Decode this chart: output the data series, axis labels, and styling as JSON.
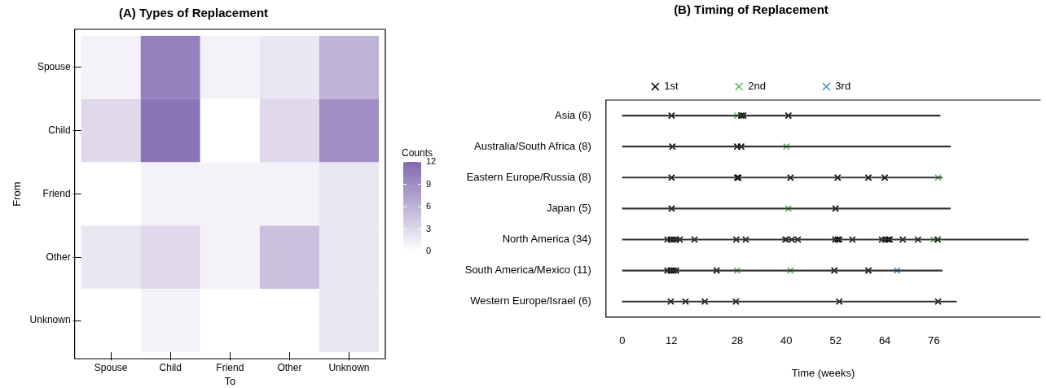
{
  "chart_data": [
    {
      "type": "heatmap",
      "title": "(A) Types of Replacement",
      "xlabel": "To",
      "ylabel": "From",
      "clabel": "Counts",
      "categories": [
        "Spouse",
        "Child",
        "Friend",
        "Other",
        "Unknown"
      ],
      "y_categories": [
        "Spouse",
        "Child",
        "Friend",
        "Other",
        "Unknown"
      ],
      "cells": [
        [
          1,
          10,
          1,
          2,
          6
        ],
        [
          3,
          11,
          0,
          3,
          9
        ],
        [
          0,
          1,
          1,
          1,
          2
        ],
        [
          2,
          3,
          1,
          5,
          2
        ],
        [
          0,
          1,
          0,
          0,
          2
        ]
      ],
      "clim": [
        0,
        12
      ],
      "cticks": [
        0,
        3,
        6,
        9,
        12
      ]
    },
    {
      "type": "bar",
      "orientation": "horizontal",
      "title": "(B) Timing of Replacement",
      "xlabel": "Time (weeks)",
      "categories": [
        "Asia (6)",
        "Australia/South Africa (8)",
        "Eastern Europe/Russia (8)",
        "Japan (5)",
        "North America (34)",
        "South America/Mexico (11)",
        "Western Europe/Israel (6)"
      ],
      "xlim": [
        -4,
        102
      ],
      "xticks": [
        0,
        12,
        28,
        40,
        52,
        64,
        76
      ],
      "legend": "top",
      "marker": "cross",
      "grid": false,
      "series": [
        {
          "color": "#333333",
          "values": [
            77.5,
            80,
            78,
            80,
            99,
            78,
            81.5
          ]
        },
        {
          "name": "1st",
          "type": "scatter",
          "color": "#000000",
          "x": [
            "Asia (6)",
            "Asia (6)",
            "Asia (6)",
            "Asia (6)",
            "Australia/South Africa (8)",
            "Australia/South Africa (8)",
            "Australia/South Africa (8)",
            "Australia/South Africa (8)",
            "Australia/South Africa (8)",
            "Eastern Europe/Russia (8)",
            "Eastern Europe/Russia (8)",
            "Eastern Europe/Russia (8)",
            "Eastern Europe/Russia (8)",
            "Eastern Europe/Russia (8)",
            "Eastern Europe/Russia (8)",
            "Eastern Europe/Russia (8)",
            "Japan (5)",
            "Japan (5)",
            "North America (34)",
            "North America (34)",
            "North America (34)",
            "North America (34)",
            "North America (34)",
            "North America (34)",
            "North America (34)",
            "North America (34)",
            "North America (34)",
            "North America (34)",
            "North America (34)",
            "North America (34)",
            "North America (34)",
            "North America (34)",
            "North America (34)",
            "North America (34)",
            "North America (34)",
            "North America (34)",
            "North America (34)",
            "North America (34)",
            "North America (34)",
            "North America (34)",
            "South America/Mexico (11)",
            "South America/Mexico (11)",
            "South America/Mexico (11)",
            "South America/Mexico (11)",
            "South America/Mexico (11)",
            "South America/Mexico (11)",
            "South America/Mexico (11)",
            "Western Europe/Israel (6)",
            "Western Europe/Israel (6)",
            "Western Europe/Israel (6)",
            "Western Europe/Israel (6)",
            "Western Europe/Israel (6)",
            "Western Europe/Israel (6)"
          ],
          "values": [
            12,
            29,
            29.5,
            40.5,
            null,
            null,
            12.2,
            28,
            29,
            12,
            28,
            28.3,
            41,
            52.5,
            60,
            64,
            12,
            52,
            11,
            11.8,
            12.5,
            13.1,
            14,
            17.6,
            27.8,
            30.1,
            39.9,
            41.3,
            42.8,
            51.9,
            52.5,
            52.9,
            56.1,
            63.3,
            64.1,
            64.8,
            65.2,
            68.4,
            72.1,
            76.9,
            11,
            11.8,
            12.5,
            13.1,
            23,
            51.7,
            60,
            11.8,
            15.4,
            20.1,
            27.7,
            52.9,
            77
          ]
        },
        {
          "name": "2nd",
          "type": "scatter",
          "color": "#5cb85c",
          "x": [
            "Asia (6)",
            "Australia/South Africa (8)",
            "Eastern Europe/Russia (8)",
            "Japan (5)",
            "North America (34)",
            "North America (34)",
            "South America/Mexico (11)",
            "South America/Mexico (11)"
          ],
          "values": [
            28,
            40,
            77,
            40.5,
            39.6,
            75.9,
            28,
            41
          ]
        },
        {
          "name": "3rd",
          "type": "scatter",
          "color": "#3a96d8",
          "x": [
            "South America/Mexico (11)"
          ],
          "values": [
            67
          ]
        }
      ]
    }
  ]
}
